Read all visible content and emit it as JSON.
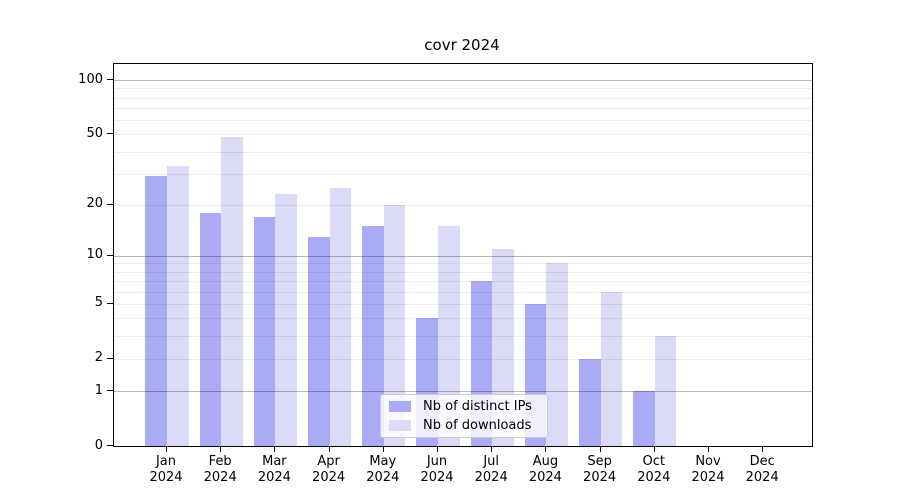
{
  "chart_data": {
    "type": "bar",
    "title": "covr 2024",
    "year_label": "2024",
    "categories": [
      "Jan",
      "Feb",
      "Mar",
      "Apr",
      "May",
      "Jun",
      "Jul",
      "Aug",
      "Sep",
      "Oct",
      "Nov",
      "Dec"
    ],
    "series": [
      {
        "name": "Nb of distinct IPs",
        "color": "#aaaaf5",
        "values": [
          29,
          18,
          17,
          13,
          15,
          4,
          7,
          5,
          2,
          1,
          0,
          0
        ]
      },
      {
        "name": "Nb of downloads",
        "color": "#dbdbf8",
        "values": [
          33,
          48,
          23,
          25,
          20,
          15,
          11,
          9,
          6,
          3,
          0,
          0
        ]
      }
    ],
    "y_ticks": [
      100,
      50,
      20,
      10,
      5,
      2,
      1,
      0
    ],
    "yscale": "log1p",
    "ylim": [
      0,
      123
    ],
    "grid": "horizontal",
    "legend_position": "bottom-center",
    "axis_color": "#000000"
  }
}
